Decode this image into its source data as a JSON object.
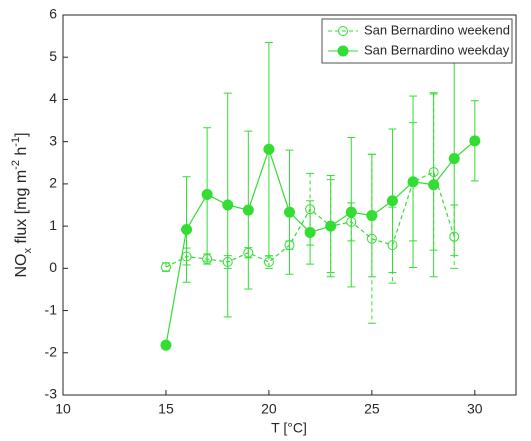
{
  "chart_data": {
    "type": "line",
    "xlabel": "T [°C]",
    "ylabel_parts": [
      "NO",
      "x",
      " flux [mg m",
      "-2",
      " h",
      "-1",
      "]"
    ],
    "xlim": [
      10,
      32
    ],
    "xticks": [
      10,
      15,
      20,
      25,
      30
    ],
    "ylim": [
      -3,
      6
    ],
    "yticks": [
      -3,
      -2,
      -1,
      0,
      1,
      2,
      3,
      4,
      5,
      6
    ],
    "legend": "upper right",
    "series": [
      {
        "name": "San Bernardino weekend",
        "color": "#33dd33",
        "style": "dashed",
        "marker": "open",
        "x": [
          15,
          16,
          17,
          18,
          19,
          20,
          21,
          22,
          23,
          24,
          25,
          26,
          27,
          28,
          29
        ],
        "values": [
          0.03,
          0.28,
          0.22,
          0.15,
          0.37,
          0.15,
          0.55,
          1.4,
          1.0,
          1.1,
          0.7,
          0.55,
          2.05,
          2.28,
          0.75
        ],
        "errors": [
          0.1,
          0.2,
          0.12,
          0.15,
          0.12,
          0.15,
          0.1,
          0.85,
          1.2,
          0.45,
          2.0,
          0.9,
          1.4,
          1.85,
          0.75
        ]
      },
      {
        "name": "San Bernardino weekday",
        "color": "#33dd33",
        "style": "solid",
        "marker": "filled",
        "x": [
          15,
          16,
          17,
          18,
          19,
          20,
          21,
          22,
          23,
          24,
          25,
          26,
          27,
          28,
          29,
          30
        ],
        "values": [
          -1.82,
          0.92,
          1.75,
          1.5,
          1.38,
          2.82,
          1.33,
          0.85,
          1.0,
          1.33,
          1.25,
          1.6,
          2.05,
          1.98,
          2.6,
          3.02
        ],
        "errors": [
          0,
          1.25,
          1.58,
          2.65,
          1.87,
          2.53,
          1.47,
          0.75,
          1.1,
          1.77,
          1.45,
          1.7,
          2.03,
          2.18,
          2.3,
          0.95
        ]
      }
    ]
  }
}
